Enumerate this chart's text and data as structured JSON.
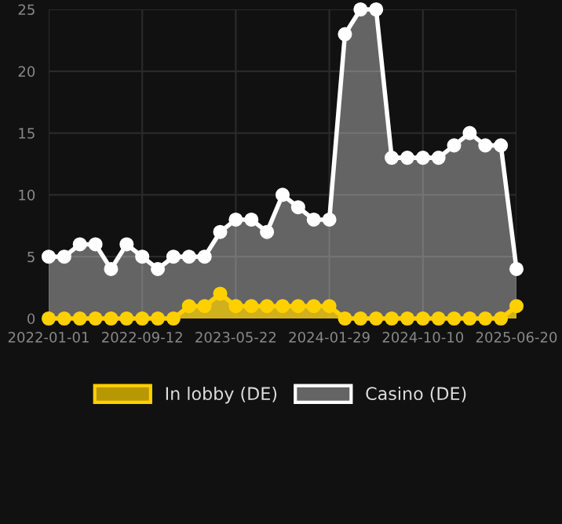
{
  "chart_data": {
    "type": "area",
    "categories": [
      "2022-01-01",
      null,
      null,
      null,
      null,
      null,
      "2022-09-12",
      null,
      null,
      null,
      null,
      null,
      "2023-05-22",
      null,
      null,
      null,
      null,
      null,
      "2024-01-29",
      null,
      null,
      null,
      null,
      null,
      "2024-10-10",
      null,
      null,
      null,
      null,
      null,
      "2025-06-20"
    ],
    "series": [
      {
        "name": "In lobby (DE)",
        "color": "#ffd000",
        "values": [
          0,
          0,
          0,
          0,
          0,
          0,
          0,
          0,
          0,
          1,
          1,
          2,
          1,
          1,
          1,
          1,
          1,
          1,
          1,
          0,
          0,
          0,
          0,
          0,
          0,
          0,
          0,
          0,
          0,
          0,
          1
        ]
      },
      {
        "name": "Casino (DE)",
        "color": "#ffffff",
        "values": [
          5,
          5,
          6,
          6,
          4,
          6,
          5,
          4,
          5,
          5,
          5,
          7,
          8,
          8,
          7,
          10,
          9,
          8,
          8,
          23,
          25,
          25,
          13,
          13,
          13,
          13,
          14,
          15,
          14,
          14,
          4
        ]
      }
    ],
    "ylim": [
      0,
      25
    ],
    "yticks": [
      0,
      5,
      10,
      15,
      20,
      25
    ],
    "grid": true,
    "legend": "bottom",
    "marker": "circle",
    "line_style": "solid"
  }
}
